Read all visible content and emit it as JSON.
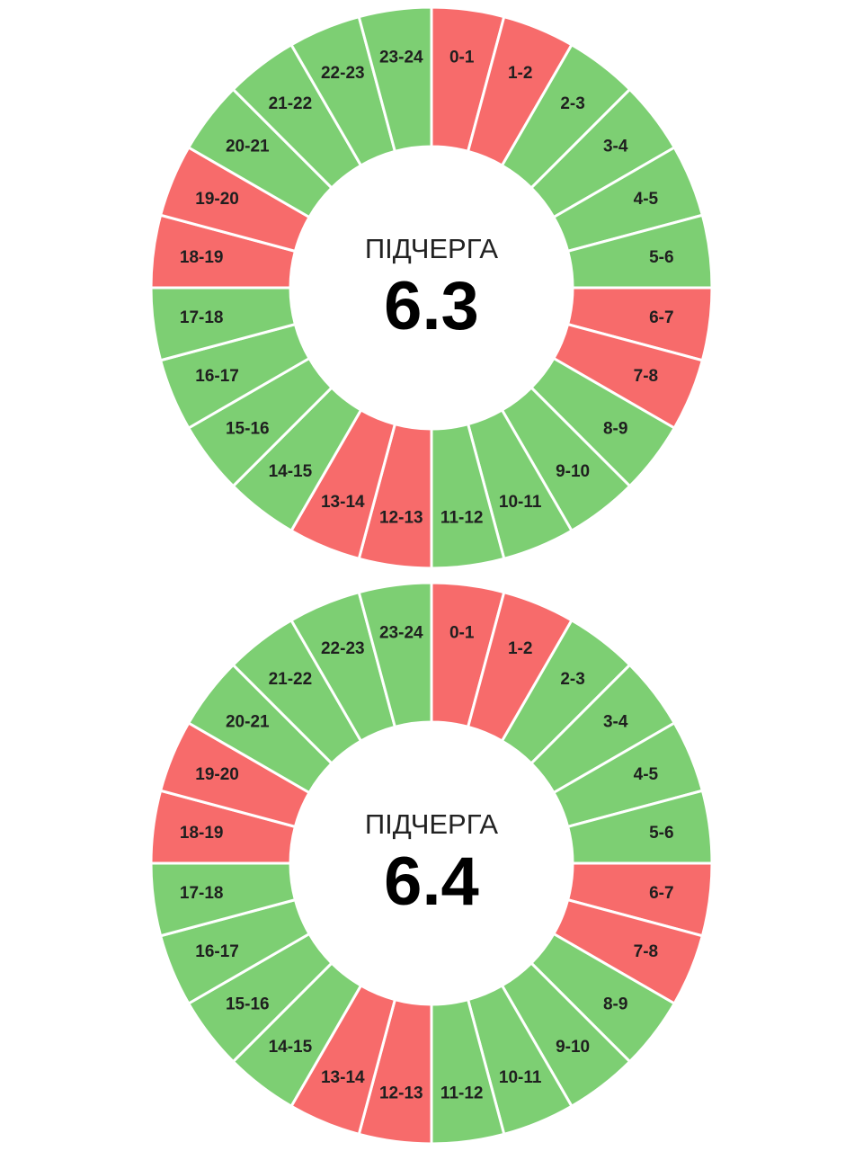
{
  "colors": {
    "on": "#7dcf73",
    "off": "#f76b6b",
    "divider": "#ffffff"
  },
  "chart_data": [
    {
      "type": "pie",
      "caption": "ПІДЧЕРГА",
      "number": "6.3",
      "categories": [
        "0-1",
        "1-2",
        "2-3",
        "3-4",
        "4-5",
        "5-6",
        "6-7",
        "7-8",
        "8-9",
        "9-10",
        "10-11",
        "11-12",
        "12-13",
        "13-14",
        "14-15",
        "15-16",
        "16-17",
        "17-18",
        "18-19",
        "19-20",
        "20-21",
        "21-22",
        "22-23",
        "23-24"
      ],
      "states": [
        "off",
        "off",
        "on",
        "on",
        "on",
        "on",
        "off",
        "off",
        "on",
        "on",
        "on",
        "on",
        "off",
        "off",
        "on",
        "on",
        "on",
        "on",
        "off",
        "off",
        "on",
        "on",
        "on",
        "on"
      ]
    },
    {
      "type": "pie",
      "caption": "ПІДЧЕРГА",
      "number": "6.4",
      "categories": [
        "0-1",
        "1-2",
        "2-3",
        "3-4",
        "4-5",
        "5-6",
        "6-7",
        "7-8",
        "8-9",
        "9-10",
        "10-11",
        "11-12",
        "12-13",
        "13-14",
        "14-15",
        "15-16",
        "16-17",
        "17-18",
        "18-19",
        "19-20",
        "20-21",
        "21-22",
        "22-23",
        "23-24"
      ],
      "states": [
        "off",
        "off",
        "on",
        "on",
        "on",
        "on",
        "off",
        "off",
        "on",
        "on",
        "on",
        "on",
        "off",
        "off",
        "on",
        "on",
        "on",
        "on",
        "off",
        "off",
        "on",
        "on",
        "on",
        "on"
      ]
    }
  ]
}
